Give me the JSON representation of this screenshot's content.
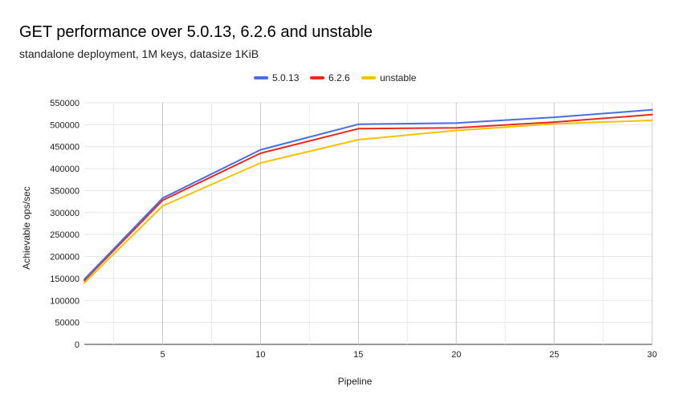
{
  "chart_data": {
    "type": "line",
    "title": "GET performance over 5.0.13, 6.2.6 and unstable",
    "subtitle": "standalone deployment, 1M keys, datasize 1KiB",
    "xlabel": "Pipeline",
    "ylabel": "Achievable ops/sec",
    "xlim": [
      1,
      30
    ],
    "ylim": [
      0,
      550000
    ],
    "x_ticks": [
      5,
      10,
      15,
      20,
      25,
      30
    ],
    "y_ticks": [
      0,
      50000,
      100000,
      150000,
      200000,
      250000,
      300000,
      350000,
      400000,
      450000,
      500000,
      550000
    ],
    "x_grid_minor": [
      2.5,
      7.5,
      12.5,
      17.5,
      22.5,
      27.5
    ],
    "grid": true,
    "legend_position": "top-center",
    "x": [
      1,
      5,
      10,
      15,
      20,
      25,
      30
    ],
    "series": [
      {
        "name": "5.0.13",
        "color": "#4a6ee0",
        "values": [
          148000,
          333000,
          443000,
          501000,
          504000,
          517000,
          534000
        ]
      },
      {
        "name": "6.2.6",
        "color": "#ea2a1e",
        "values": [
          145000,
          328000,
          435000,
          491000,
          493000,
          506000,
          523000
        ]
      },
      {
        "name": "unstable",
        "color": "#f6c108",
        "values": [
          140000,
          315000,
          413000,
          466000,
          487000,
          502000,
          510000
        ]
      }
    ]
  }
}
